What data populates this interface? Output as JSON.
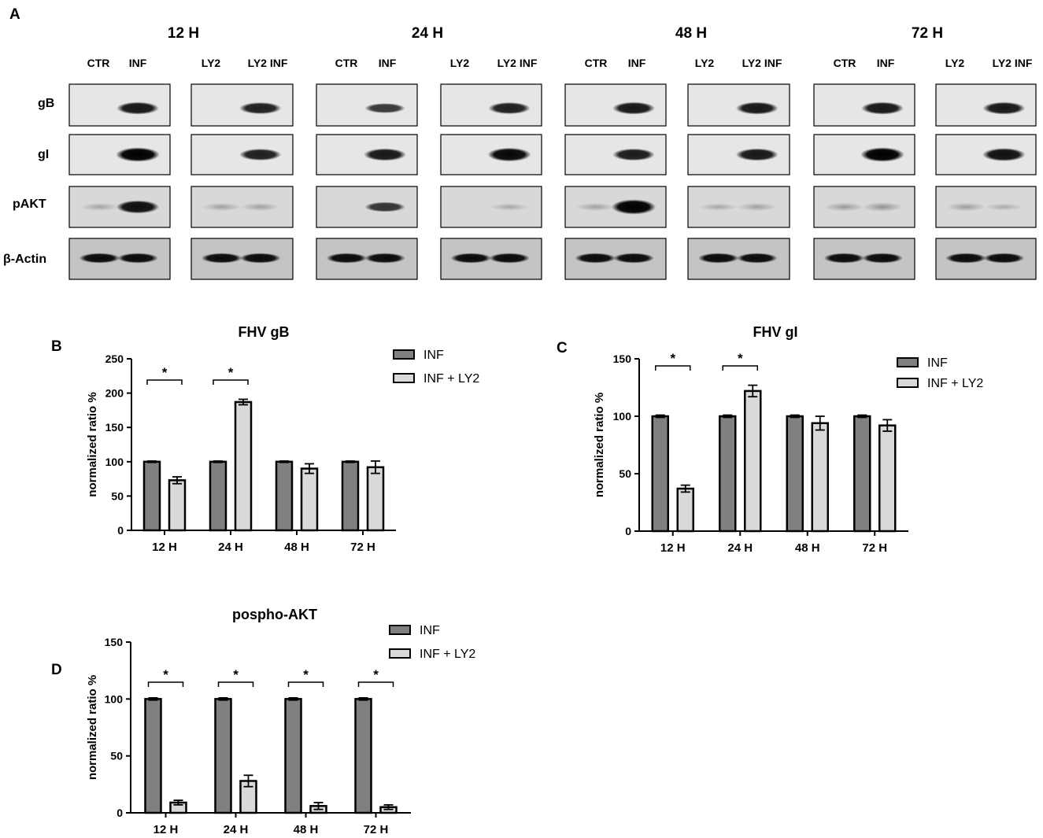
{
  "panel_a": {
    "label": "A",
    "timepoints": [
      "12 H",
      "24 H",
      "48 H",
      "72 H"
    ],
    "lane_labels": [
      "CTR",
      "INF",
      "LY2",
      "LY2 INF"
    ],
    "row_labels": [
      "gB",
      "gI",
      "pAKT",
      "β-Actin"
    ]
  },
  "chart_data": [
    {
      "panel": "B",
      "type": "bar",
      "title": "FHV gB",
      "xlabel": "",
      "ylabel": "normalized ratio %",
      "ylim": [
        0,
        250
      ],
      "yticks": [
        0,
        50,
        100,
        150,
        200,
        250
      ],
      "categories": [
        "12 H",
        "24 H",
        "48 H",
        "72 H"
      ],
      "series": [
        {
          "name": "INF",
          "values": [
            100,
            100,
            100,
            100
          ],
          "errors": [
            1,
            1,
            1,
            1
          ],
          "color": "#808080"
        },
        {
          "name": "INF + LY2",
          "values": [
            73,
            187,
            90,
            92
          ],
          "errors": [
            5,
            4,
            7,
            9
          ],
          "color": "#d9d9d9"
        }
      ],
      "significance": [
        {
          "category": "12 H",
          "label": "*"
        },
        {
          "category": "24 H",
          "label": "*"
        }
      ],
      "legend": "top-right",
      "grid": false
    },
    {
      "panel": "C",
      "type": "bar",
      "title": "FHV gI",
      "xlabel": "",
      "ylabel": "normalized ratio %",
      "ylim": [
        0,
        150
      ],
      "yticks": [
        0,
        50,
        100,
        150
      ],
      "categories": [
        "12 H",
        "24 H",
        "48 H",
        "72 H"
      ],
      "series": [
        {
          "name": "INF",
          "values": [
            100,
            100,
            100,
            100
          ],
          "errors": [
            1,
            1,
            1,
            1
          ],
          "color": "#808080"
        },
        {
          "name": "INF + LY2",
          "values": [
            37,
            122,
            94,
            92
          ],
          "errors": [
            3,
            5,
            6,
            5
          ],
          "color": "#d9d9d9"
        }
      ],
      "significance": [
        {
          "category": "12 H",
          "label": "*"
        },
        {
          "category": "24 H",
          "label": "*"
        }
      ],
      "legend": "top-right",
      "grid": false
    },
    {
      "panel": "D",
      "type": "bar",
      "title": "pospho-AKT",
      "xlabel": "",
      "ylabel": "normalized ratio %",
      "ylim": [
        0,
        150
      ],
      "yticks": [
        0,
        50,
        100,
        150
      ],
      "categories": [
        "12 H",
        "24 H",
        "48 H",
        "72 H"
      ],
      "series": [
        {
          "name": "INF",
          "values": [
            100,
            100,
            100,
            100
          ],
          "errors": [
            1,
            1,
            1,
            1
          ],
          "color": "#808080"
        },
        {
          "name": "INF + LY2",
          "values": [
            9,
            28,
            6,
            5
          ],
          "errors": [
            2,
            5,
            3,
            2
          ],
          "color": "#d9d9d9"
        }
      ],
      "significance": [
        {
          "category": "12 H",
          "label": "*"
        },
        {
          "category": "24 H",
          "label": "*"
        },
        {
          "category": "48 H",
          "label": "*"
        },
        {
          "category": "72 H",
          "label": "*"
        }
      ],
      "legend": "top-right",
      "grid": false
    }
  ]
}
